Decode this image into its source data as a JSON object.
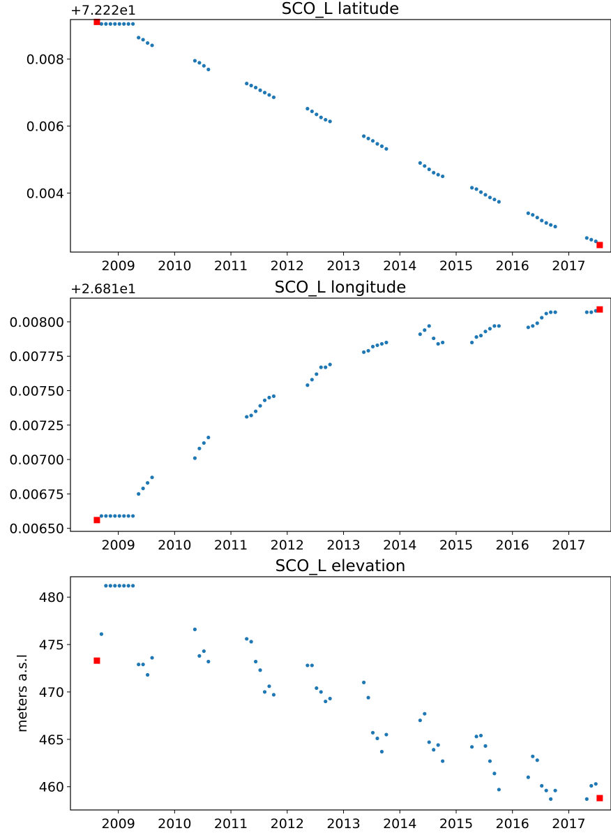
{
  "chart_data": [
    {
      "type": "scatter",
      "title": "SCO_L latitude",
      "offset_text": "+7.222e1",
      "ylabel": "",
      "xlim": [
        2008.15,
        2017.75
      ],
      "ylim": [
        0.00224,
        0.00918
      ],
      "xticks": [
        2009,
        2010,
        2011,
        2012,
        2013,
        2014,
        2015,
        2016,
        2017
      ],
      "xtick_labels": [
        "2009",
        "2010",
        "2011",
        "2012",
        "2013",
        "2014",
        "2015",
        "2016",
        "2017"
      ],
      "yticks": [
        0.004,
        0.006,
        0.008
      ],
      "ytick_labels": [
        "0.004",
        "0.006",
        "0.008"
      ],
      "series": [
        {
          "marker": "dot",
          "color": "#1f77b4",
          "x": [
            2008.7,
            2008.78,
            2008.86,
            2008.94,
            2009.02,
            2009.1,
            2009.18,
            2009.26,
            2009.36,
            2009.44,
            2009.52,
            2009.6,
            2010.36,
            2010.44,
            2010.52,
            2010.6,
            2011.28,
            2011.36,
            2011.44,
            2011.52,
            2011.6,
            2011.68,
            2011.76,
            2012.36,
            2012.44,
            2012.52,
            2012.6,
            2012.68,
            2012.76,
            2013.36,
            2013.44,
            2013.52,
            2013.6,
            2013.68,
            2013.76,
            2014.36,
            2014.44,
            2014.52,
            2014.6,
            2014.68,
            2014.76,
            2015.28,
            2015.36,
            2015.44,
            2015.52,
            2015.6,
            2015.68,
            2015.76,
            2016.28,
            2016.36,
            2016.44,
            2016.52,
            2016.6,
            2016.68,
            2016.76,
            2017.32,
            2017.4,
            2017.48
          ],
          "y": [
            0.00905,
            0.00905,
            0.00905,
            0.00905,
            0.00905,
            0.00905,
            0.00905,
            0.00905,
            0.00864,
            0.00858,
            0.00848,
            0.00841,
            0.00795,
            0.00789,
            0.0078,
            0.00769,
            0.00727,
            0.00721,
            0.00715,
            0.00707,
            0.007,
            0.00693,
            0.00686,
            0.00652,
            0.00644,
            0.00635,
            0.00626,
            0.00619,
            0.00614,
            0.0057,
            0.00563,
            0.00556,
            0.00547,
            0.0054,
            0.00532,
            0.0049,
            0.00481,
            0.00471,
            0.00461,
            0.00455,
            0.0045,
            0.00416,
            0.00412,
            0.00403,
            0.00395,
            0.00387,
            0.00381,
            0.00374,
            0.0034,
            0.00335,
            0.00327,
            0.00318,
            0.00311,
            0.00305,
            0.003,
            0.00266,
            0.00261,
            0.00256
          ]
        },
        {
          "marker": "square",
          "color": "#ff0000",
          "x": [
            2008.62,
            2017.55
          ],
          "y": [
            0.00911,
            0.00245
          ]
        }
      ]
    },
    {
      "type": "scatter",
      "title": "SCO_L longitude",
      "offset_text": "+2.681e1",
      "ylabel": "",
      "xlim": [
        2008.15,
        2017.75
      ],
      "ylim": [
        0.006478,
        0.008172
      ],
      "xticks": [
        2009,
        2010,
        2011,
        2012,
        2013,
        2014,
        2015,
        2016,
        2017
      ],
      "xtick_labels": [
        "2009",
        "2010",
        "2011",
        "2012",
        "2013",
        "2014",
        "2015",
        "2016",
        "2017"
      ],
      "yticks": [
        0.0065,
        0.00675,
        0.007,
        0.00725,
        0.0075,
        0.00775,
        0.008
      ],
      "ytick_labels": [
        "0.00650",
        "0.00675",
        "0.00700",
        "0.00725",
        "0.00750",
        "0.00775",
        "0.00800"
      ],
      "series": [
        {
          "marker": "dot",
          "color": "#1f77b4",
          "x": [
            2008.7,
            2008.78,
            2008.86,
            2008.94,
            2009.02,
            2009.1,
            2009.18,
            2009.26,
            2009.36,
            2009.44,
            2009.52,
            2009.6,
            2010.36,
            2010.44,
            2010.52,
            2010.6,
            2011.28,
            2011.36,
            2011.44,
            2011.52,
            2011.6,
            2011.68,
            2011.76,
            2012.36,
            2012.44,
            2012.52,
            2012.6,
            2012.68,
            2012.76,
            2013.36,
            2013.44,
            2013.52,
            2013.6,
            2013.68,
            2013.76,
            2014.36,
            2014.44,
            2014.52,
            2014.6,
            2014.68,
            2014.76,
            2015.28,
            2015.36,
            2015.44,
            2015.52,
            2015.6,
            2015.68,
            2015.76,
            2016.28,
            2016.36,
            2016.44,
            2016.52,
            2016.6,
            2016.68,
            2016.76,
            2017.32,
            2017.4,
            2017.48
          ],
          "y": [
            0.00659,
            0.00659,
            0.00659,
            0.00659,
            0.00659,
            0.00659,
            0.00659,
            0.00659,
            0.00675,
            0.00679,
            0.00683,
            0.00687,
            0.00701,
            0.00708,
            0.00712,
            0.00716,
            0.00731,
            0.00732,
            0.00735,
            0.00739,
            0.00743,
            0.00745,
            0.00746,
            0.00754,
            0.00758,
            0.00762,
            0.00767,
            0.00767,
            0.00769,
            0.00778,
            0.00779,
            0.00782,
            0.00783,
            0.00784,
            0.00785,
            0.00791,
            0.00794,
            0.00797,
            0.00788,
            0.00784,
            0.00785,
            0.00785,
            0.00789,
            0.0079,
            0.00793,
            0.00795,
            0.00797,
            0.00797,
            0.00796,
            0.00797,
            0.00799,
            0.00803,
            0.00806,
            0.00807,
            0.00807,
            0.00807,
            0.00807,
            0.00808
          ]
        },
        {
          "marker": "square",
          "color": "#ff0000",
          "x": [
            2008.62,
            2017.55
          ],
          "y": [
            0.00656,
            0.00809
          ]
        }
      ]
    },
    {
      "type": "scatter",
      "title": "SCO_L elevation",
      "offset_text": "",
      "ylabel": "meters a.s.l",
      "xlim": [
        2008.15,
        2017.75
      ],
      "ylim": [
        457.55,
        482.15
      ],
      "xticks": [
        2009,
        2010,
        2011,
        2012,
        2013,
        2014,
        2015,
        2016,
        2017
      ],
      "xtick_labels": [
        "2009",
        "2010",
        "2011",
        "2012",
        "2013",
        "2014",
        "2015",
        "2016",
        "2017"
      ],
      "yticks": [
        460,
        465,
        470,
        475,
        480
      ],
      "ytick_labels": [
        "460",
        "465",
        "470",
        "475",
        "480"
      ],
      "series": [
        {
          "marker": "dot",
          "color": "#1f77b4",
          "x": [
            2008.7,
            2008.78,
            2008.86,
            2008.94,
            2009.02,
            2009.1,
            2009.18,
            2009.26,
            2009.36,
            2009.44,
            2009.52,
            2009.6,
            2010.36,
            2010.44,
            2010.52,
            2010.6,
            2011.28,
            2011.36,
            2011.44,
            2011.52,
            2011.6,
            2011.68,
            2011.76,
            2012.36,
            2012.44,
            2012.52,
            2012.6,
            2012.68,
            2012.76,
            2013.36,
            2013.44,
            2013.52,
            2013.6,
            2013.68,
            2013.76,
            2014.36,
            2014.44,
            2014.52,
            2014.6,
            2014.68,
            2014.76,
            2015.28,
            2015.36,
            2015.44,
            2015.52,
            2015.6,
            2015.68,
            2015.76,
            2016.28,
            2016.36,
            2016.44,
            2016.52,
            2016.6,
            2016.68,
            2016.76,
            2017.32,
            2017.4,
            2017.48
          ],
          "y": [
            476.1,
            481.2,
            481.2,
            481.2,
            481.2,
            481.2,
            481.2,
            481.2,
            472.9,
            472.9,
            471.8,
            473.6,
            476.6,
            473.8,
            474.3,
            473.2,
            475.6,
            475.3,
            473.2,
            472.3,
            470.0,
            470.6,
            469.7,
            472.8,
            472.8,
            470.4,
            470.0,
            469.0,
            469.3,
            471.0,
            469.4,
            465.7,
            465.1,
            463.7,
            465.5,
            467.0,
            467.7,
            464.7,
            463.9,
            464.4,
            462.7,
            464.2,
            465.3,
            465.4,
            464.3,
            462.7,
            461.4,
            459.7,
            461.0,
            463.2,
            462.8,
            460.1,
            459.6,
            458.7,
            459.6,
            458.7,
            460.1,
            460.3
          ]
        },
        {
          "marker": "square",
          "color": "#ff0000",
          "x": [
            2008.62,
            2017.55
          ],
          "y": [
            473.3,
            458.8
          ]
        }
      ]
    }
  ]
}
